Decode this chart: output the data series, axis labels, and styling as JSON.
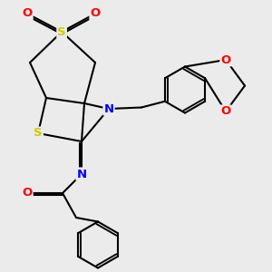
{
  "bg_color": "#ebebeb",
  "atom_colors": {
    "S": "#cccc00",
    "N": "#0000ff",
    "O": "#ff0000",
    "C": "#000000"
  },
  "bond_color": "#000000",
  "bond_width": 1.5,
  "font_size_atom": 9.5
}
